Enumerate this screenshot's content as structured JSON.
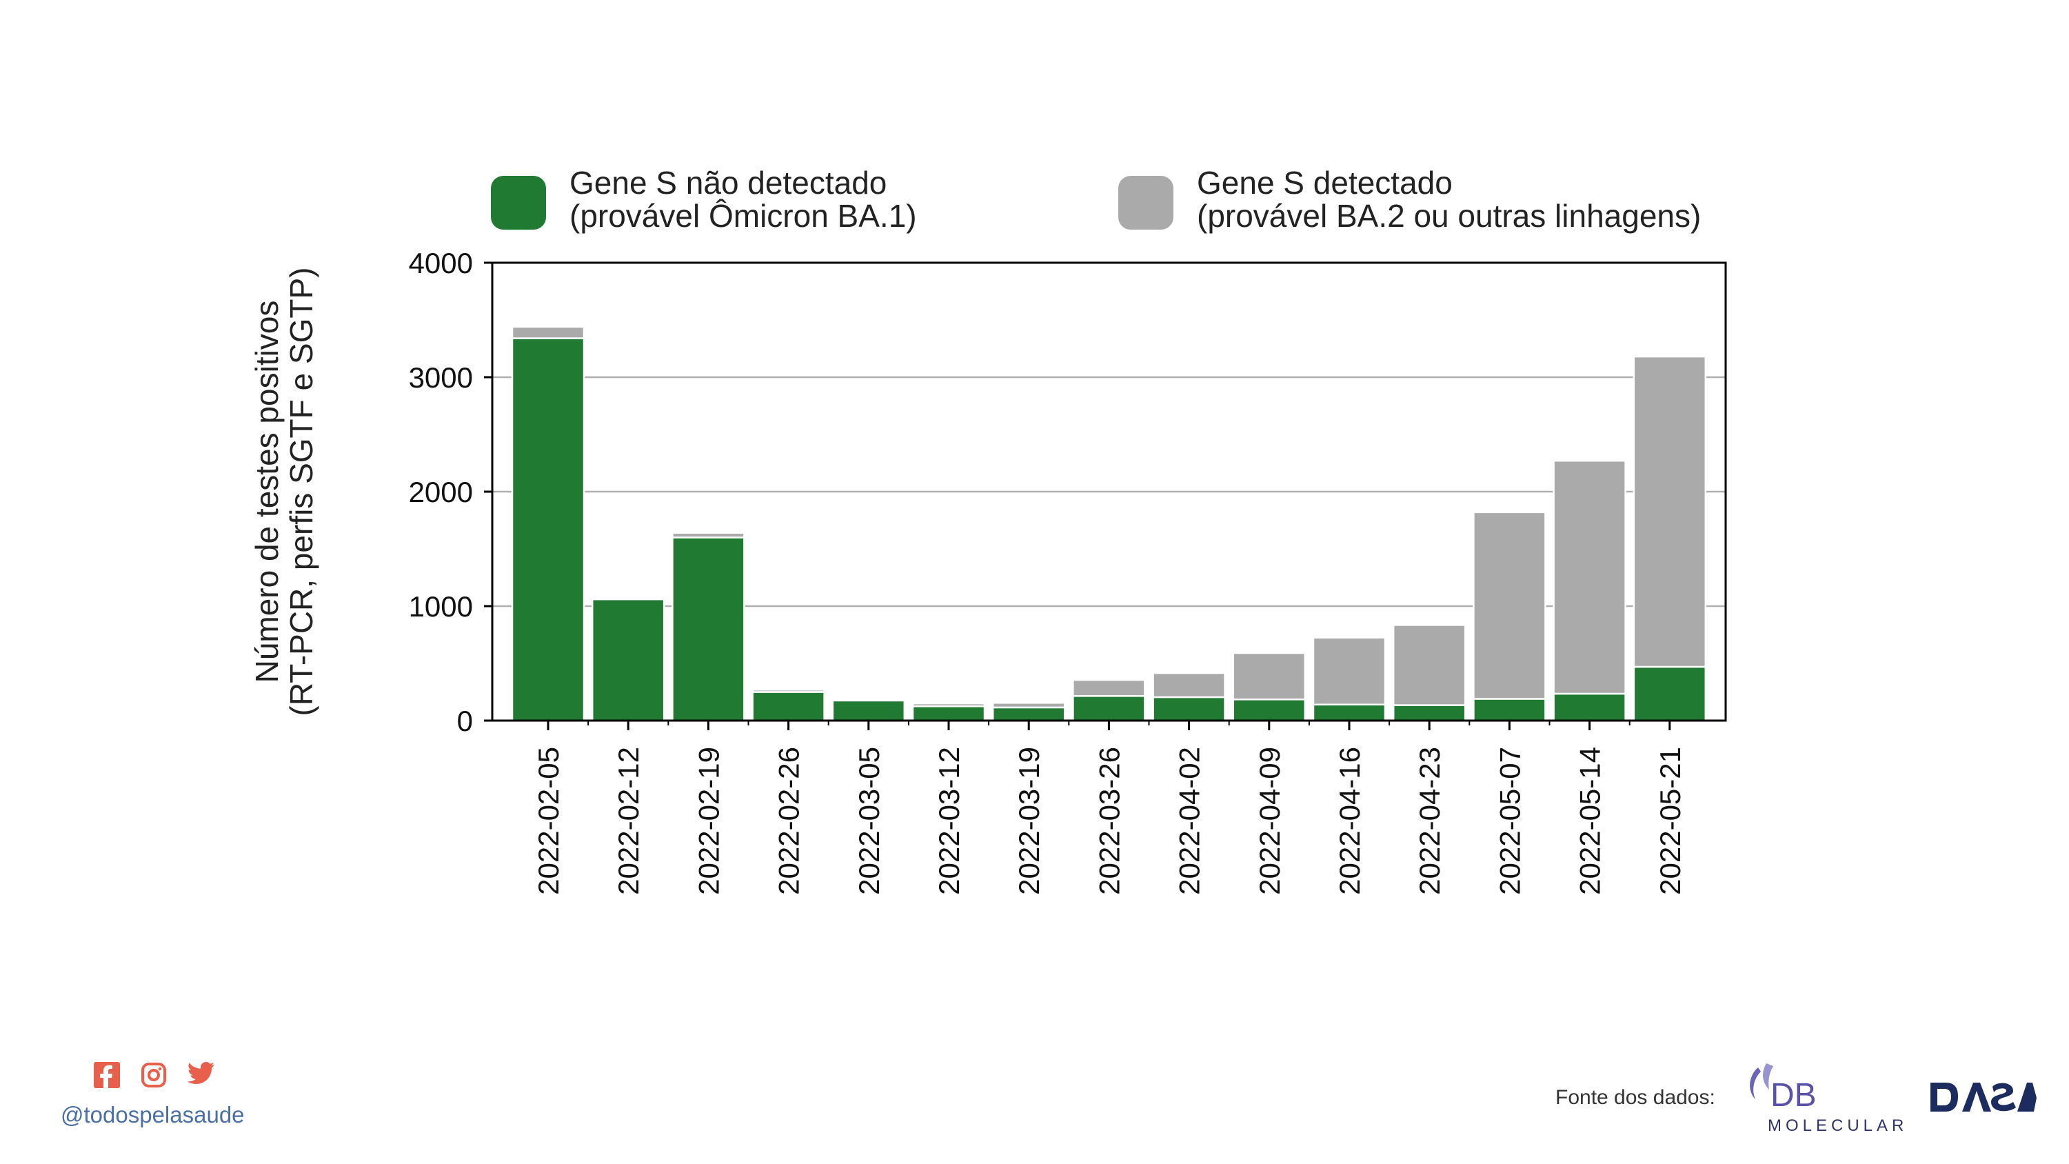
{
  "chart_data": {
    "type": "bar",
    "stacked": true,
    "categories": [
      "2022-02-05",
      "2022-02-12",
      "2022-02-19",
      "2022-02-26",
      "2022-03-05",
      "2022-03-12",
      "2022-03-19",
      "2022-03-26",
      "2022-04-02",
      "2022-04-09",
      "2022-04-16",
      "2022-04-23",
      "2022-05-07",
      "2022-05-14",
      "2022-05-21"
    ],
    "series": [
      {
        "name": "Gene S não detectado\n(provável Ômicron BA.1)",
        "color": "#217a32",
        "values": [
          3340,
          1060,
          1600,
          250,
          175,
          125,
          115,
          215,
          205,
          185,
          140,
          135,
          190,
          235,
          470
        ]
      },
      {
        "name": "Gene S detectado\n(provável BA.2 ou outras linhagens)",
        "color": "#aaaaaa",
        "values": [
          100,
          5,
          40,
          20,
          0,
          25,
          40,
          140,
          210,
          405,
          585,
          700,
          1630,
          2035,
          2710
        ]
      }
    ],
    "ylabel": "Número de testes positivos\n(RT-PCR, perfis SGTF e SGTP)",
    "ylim": [
      0,
      4000
    ],
    "yticks": [
      0,
      1000,
      2000,
      3000,
      4000
    ],
    "grid": "horizontal",
    "legend": "top"
  },
  "footer": {
    "handle": "@todospelasaude",
    "source_label": "Fonte dos dados:",
    "logo_db_text": "DB",
    "logo_db_sub": "MOLECULAR",
    "logo_dasa_text": "DASA"
  }
}
